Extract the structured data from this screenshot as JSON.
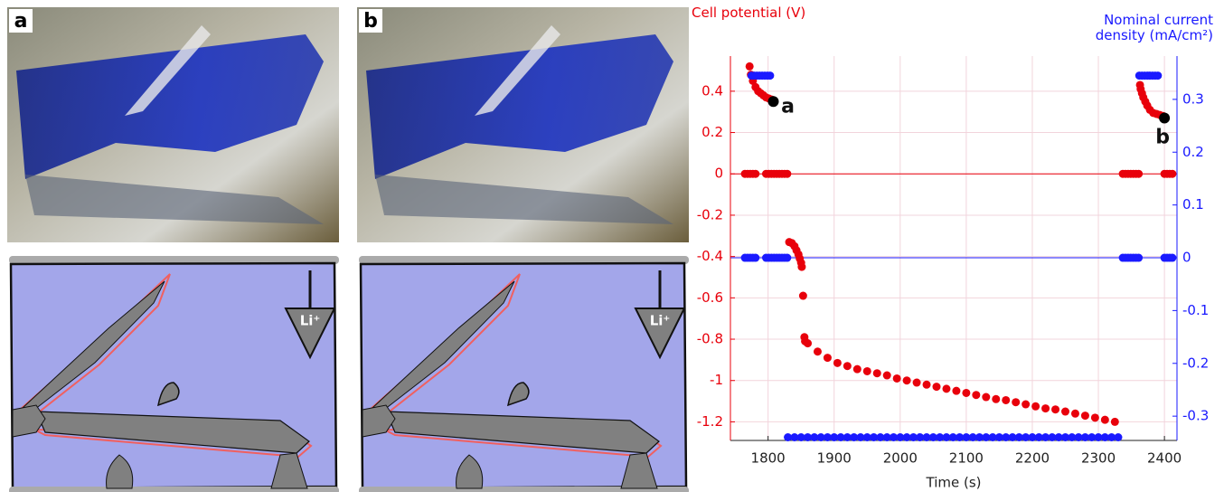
{
  "panels": [
    {
      "label": "a"
    },
    {
      "label": "b"
    }
  ],
  "ion_label": "Li⁺",
  "chart_data": {
    "type": "scatter",
    "y_label": "Cell potential (V)",
    "y2_label": "Nominal current density (mA/cm²)",
    "x_label": "Time (s)",
    "xlim": [
      1743,
      2419
    ],
    "xticks": [
      1800,
      1900,
      2000,
      2100,
      2200,
      2300,
      2400
    ],
    "ylim": [
      -1.29,
      0.57
    ],
    "yticks": [
      0.4,
      0.2,
      0,
      -0.2,
      -0.4,
      -0.6,
      -0.8,
      -1,
      -1.2
    ],
    "y2lim": [
      -0.346,
      0.382
    ],
    "y2ticks": [
      0.3,
      0.2,
      0.1,
      0,
      -0.1,
      -0.2,
      -0.3
    ],
    "grid": true,
    "zero_lines": true,
    "y_color": "#e8000b",
    "y2_color": "#1a1aff",
    "series": [
      {
        "color": "#e8000b",
        "axis": "y",
        "x": [
          1765,
          1769,
          1773,
          1777,
          1781,
          1797,
          1801,
          1805,
          1809,
          1813,
          1817,
          1821,
          1825,
          1829,
          2337,
          2341,
          2345,
          2349,
          2353,
          2357,
          2361,
          2400,
          2404,
          2408,
          2412,
          1772,
          1774,
          1777,
          1781,
          1785,
          1789,
          1793,
          1797,
          1801,
          1805,
          1832,
          1836,
          1840,
          1843,
          1846,
          1848,
          1850,
          1851,
          1853,
          1855,
          1856,
          1860,
          1875,
          1890,
          1905,
          1920,
          1935,
          1950,
          1965,
          1980,
          1995,
          2010,
          2025,
          2040,
          2055,
          2070,
          2085,
          2100,
          2115,
          2130,
          2145,
          2160,
          2175,
          2190,
          2205,
          2220,
          2235,
          2250,
          2265,
          2280,
          2295,
          2310,
          2325,
          2363,
          2364,
          2366,
          2368,
          2371,
          2374,
          2378,
          2383,
          2388,
          2393,
          2398
        ],
        "values": [
          0,
          0,
          0,
          0,
          0,
          0,
          0,
          0,
          0,
          0,
          0,
          0,
          0,
          0,
          0,
          0,
          0,
          0,
          0,
          0,
          0,
          0,
          0,
          0,
          0,
          0.52,
          0.48,
          0.45,
          0.42,
          0.4,
          0.39,
          0.38,
          0.37,
          0.365,
          0.36,
          -0.33,
          -0.335,
          -0.35,
          -0.37,
          -0.39,
          -0.41,
          -0.43,
          -0.45,
          -0.59,
          -0.79,
          -0.81,
          -0.82,
          -0.86,
          -0.89,
          -0.915,
          -0.93,
          -0.945,
          -0.955,
          -0.965,
          -0.975,
          -0.99,
          -1.0,
          -1.01,
          -1.02,
          -1.03,
          -1.04,
          -1.05,
          -1.06,
          -1.07,
          -1.08,
          -1.09,
          -1.095,
          -1.105,
          -1.115,
          -1.125,
          -1.135,
          -1.14,
          -1.15,
          -1.16,
          -1.17,
          -1.18,
          -1.19,
          -1.2,
          0.43,
          0.41,
          0.39,
          0.37,
          0.35,
          0.33,
          0.31,
          0.295,
          0.29,
          0.285,
          0.28
        ]
      },
      {
        "color": "#1a1aff",
        "axis": "y2",
        "x": [
          1765,
          1769,
          1773,
          1777,
          1781,
          1797,
          1801,
          1805,
          1809,
          1813,
          1817,
          1821,
          1825,
          1829,
          2337,
          2341,
          2345,
          2349,
          2353,
          2357,
          2361,
          2400,
          2404,
          2408,
          2412,
          1775,
          1779,
          1783,
          1787,
          1791,
          1795,
          1799,
          1803,
          2362,
          2366,
          2370,
          2374,
          2378,
          2382,
          2386,
          2390,
          1830,
          1840,
          1850,
          1860,
          1870,
          1880,
          1890,
          1900,
          1910,
          1920,
          1930,
          1940,
          1950,
          1960,
          1970,
          1980,
          1990,
          2000,
          2010,
          2020,
          2030,
          2040,
          2050,
          2060,
          2070,
          2080,
          2090,
          2100,
          2110,
          2120,
          2130,
          2140,
          2150,
          2160,
          2170,
          2180,
          2190,
          2200,
          2210,
          2220,
          2230,
          2240,
          2250,
          2260,
          2270,
          2280,
          2290,
          2300,
          2310,
          2320,
          2330
        ],
        "values": [
          0,
          0,
          0,
          0,
          0,
          0,
          0,
          0,
          0,
          0,
          0,
          0,
          0,
          0,
          0,
          0,
          0,
          0,
          0,
          0,
          0,
          0,
          0,
          0,
          0,
          0.345,
          0.345,
          0.345,
          0.345,
          0.345,
          0.345,
          0.345,
          0.345,
          0.345,
          0.345,
          0.345,
          0.345,
          0.345,
          0.345,
          0.345,
          0.345,
          -0.34,
          -0.34,
          -0.34,
          -0.34,
          -0.34,
          -0.34,
          -0.34,
          -0.34,
          -0.34,
          -0.34,
          -0.34,
          -0.34,
          -0.34,
          -0.34,
          -0.34,
          -0.34,
          -0.34,
          -0.34,
          -0.34,
          -0.34,
          -0.34,
          -0.34,
          -0.34,
          -0.34,
          -0.34,
          -0.34,
          -0.34,
          -0.34,
          -0.34,
          -0.34,
          -0.34,
          -0.34,
          -0.34,
          -0.34,
          -0.34,
          -0.34,
          -0.34,
          -0.34,
          -0.34,
          -0.34,
          -0.34,
          -0.34,
          -0.34,
          -0.34,
          -0.34,
          -0.34,
          -0.34,
          -0.34,
          -0.34,
          -0.34,
          -0.34
        ]
      }
    ],
    "annotations": [
      {
        "x": 1808,
        "y": 0.35,
        "text": "a"
      },
      {
        "x": 2400,
        "y": 0.27,
        "text": "b"
      }
    ]
  }
}
